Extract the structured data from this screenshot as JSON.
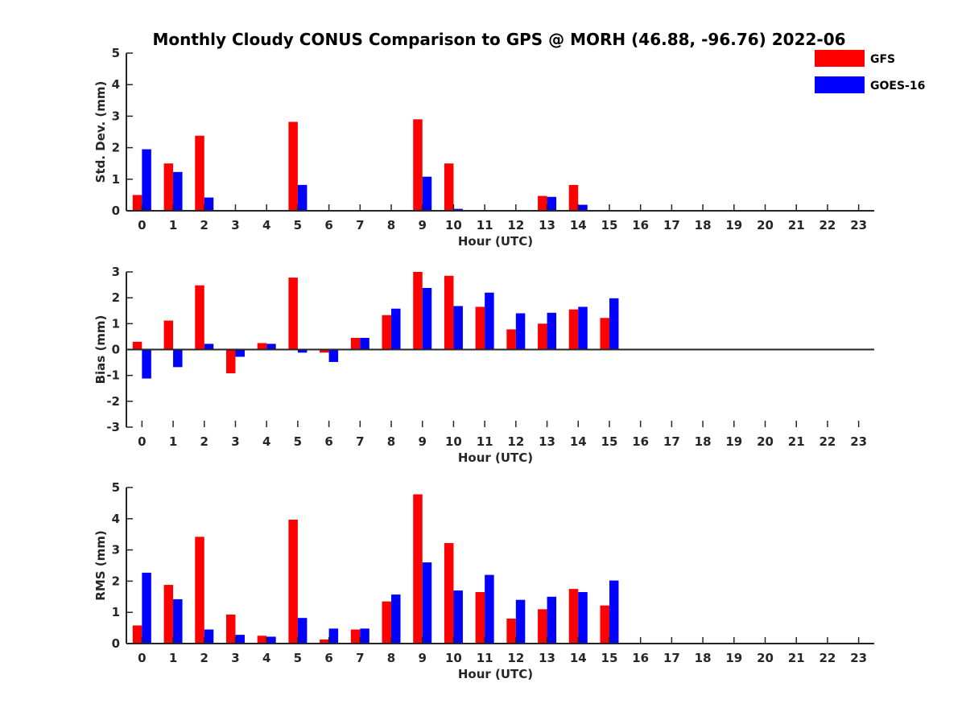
{
  "figure": {
    "title": "Monthly Cloudy CONUS Comparison to GPS @ MORH (46.88, -96.76) 2022-06"
  },
  "legend": {
    "entries": [
      {
        "label": "GFS",
        "color": "#ff0000"
      },
      {
        "label": "GOES-16",
        "color": "#0000ff"
      }
    ]
  },
  "chart_data": [
    {
      "type": "bar",
      "title": "Monthly Cloudy CONUS Comparison to GPS @ MORH (46.88, -96.76) 2022-06",
      "xlabel": "Hour (UTC)",
      "ylabel": "Std. Dev. (mm)",
      "ylim": [
        0,
        5
      ],
      "yticks": [
        0,
        1,
        2,
        3,
        4,
        5
      ],
      "categories": [
        "0",
        "1",
        "2",
        "3",
        "4",
        "5",
        "6",
        "7",
        "8",
        "9",
        "10",
        "11",
        "12",
        "13",
        "14",
        "15",
        "16",
        "17",
        "18",
        "19",
        "20",
        "21",
        "22",
        "23"
      ],
      "series": [
        {
          "name": "GFS",
          "color": "#ff0000",
          "values": [
            0.5,
            1.5,
            2.38,
            null,
            null,
            2.82,
            null,
            null,
            null,
            2.9,
            1.5,
            null,
            null,
            0.47,
            0.82,
            null,
            null,
            null,
            null,
            null,
            null,
            null,
            null,
            null
          ]
        },
        {
          "name": "GOES-16",
          "color": "#0000ff",
          "values": [
            1.95,
            1.23,
            0.42,
            null,
            null,
            0.82,
            null,
            null,
            null,
            1.08,
            0.06,
            null,
            null,
            0.44,
            0.19,
            null,
            null,
            null,
            null,
            null,
            null,
            null,
            null,
            null
          ]
        }
      ]
    },
    {
      "type": "bar",
      "title": "",
      "xlabel": "Hour (UTC)",
      "ylabel": "Bias (mm)",
      "ylim": [
        -3,
        3
      ],
      "yticks": [
        -3,
        -2,
        -1,
        0,
        1,
        2,
        3
      ],
      "categories": [
        "0",
        "1",
        "2",
        "3",
        "4",
        "5",
        "6",
        "7",
        "8",
        "9",
        "10",
        "11",
        "12",
        "13",
        "14",
        "15",
        "16",
        "17",
        "18",
        "19",
        "20",
        "21",
        "22",
        "23"
      ],
      "series": [
        {
          "name": "GFS",
          "color": "#ff0000",
          "values": [
            0.3,
            1.12,
            2.48,
            -0.92,
            0.25,
            2.78,
            -0.12,
            0.45,
            1.33,
            3.0,
            2.85,
            1.65,
            0.78,
            1.0,
            1.55,
            1.22,
            null,
            null,
            null,
            null,
            null,
            null,
            null,
            null
          ]
        },
        {
          "name": "GOES-16",
          "color": "#0000ff",
          "values": [
            -1.12,
            -0.68,
            0.22,
            -0.28,
            0.22,
            -0.12,
            -0.48,
            0.45,
            1.58,
            2.38,
            1.68,
            2.2,
            1.4,
            1.42,
            1.65,
            1.98,
            null,
            null,
            null,
            null,
            null,
            null,
            null,
            null
          ]
        }
      ]
    },
    {
      "type": "bar",
      "title": "",
      "xlabel": "Hour (UTC)",
      "ylabel": "RMS (mm)",
      "ylim": [
        0,
        5
      ],
      "yticks": [
        0,
        1,
        2,
        3,
        4,
        5
      ],
      "categories": [
        "0",
        "1",
        "2",
        "3",
        "4",
        "5",
        "6",
        "7",
        "8",
        "9",
        "10",
        "11",
        "12",
        "13",
        "14",
        "15",
        "16",
        "17",
        "18",
        "19",
        "20",
        "21",
        "22",
        "23"
      ],
      "series": [
        {
          "name": "GFS",
          "color": "#ff0000",
          "values": [
            0.58,
            1.88,
            3.42,
            0.93,
            0.25,
            3.97,
            0.13,
            0.45,
            1.35,
            4.78,
            3.22,
            1.65,
            0.8,
            1.1,
            1.75,
            1.22,
            null,
            null,
            null,
            null,
            null,
            null,
            null,
            null
          ]
        },
        {
          "name": "GOES-16",
          "color": "#0000ff",
          "values": [
            2.27,
            1.42,
            0.45,
            0.28,
            0.22,
            0.82,
            0.48,
            0.48,
            1.57,
            2.6,
            1.7,
            2.2,
            1.4,
            1.5,
            1.65,
            2.02,
            null,
            null,
            null,
            null,
            null,
            null,
            null,
            null
          ]
        }
      ]
    }
  ]
}
